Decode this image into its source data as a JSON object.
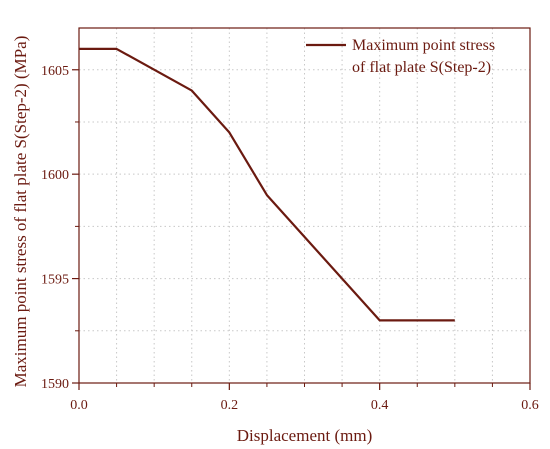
{
  "chart_data": {
    "type": "line",
    "title": "",
    "xlabel": "Displacement (mm)",
    "ylabel": "Maximum point stress of flat plate S(Step-2) (MPa)",
    "xlim": [
      0.0,
      0.6
    ],
    "ylim": [
      1590,
      1607
    ],
    "x_ticks": [
      0.0,
      0.2,
      0.4,
      0.6
    ],
    "x_tick_labels": [
      "0.0",
      "0.2",
      "0.4",
      "0.6"
    ],
    "y_ticks": [
      1590,
      1595,
      1600,
      1605
    ],
    "y_tick_labels": [
      "1590",
      "1595",
      "1600",
      "1605"
    ],
    "x_minor_ticks": [
      0.05,
      0.1,
      0.15,
      0.25,
      0.3,
      0.35,
      0.45,
      0.5,
      0.55
    ],
    "y_minor_ticks": [
      1592.5,
      1597.5,
      1602.5
    ],
    "grid": true,
    "grid_style": "dotted",
    "legend_position": "top-right",
    "series": [
      {
        "name": "Maximum point stress of flat plate S(Step-2)",
        "legend_lines": [
          "Maximum point stress",
          "of flat plate S(Step-2)"
        ],
        "color": "#6b1a10",
        "x": [
          0.0,
          0.05,
          0.15,
          0.2,
          0.25,
          0.4,
          0.5
        ],
        "y": [
          1606,
          1606,
          1604,
          1602,
          1599,
          1593,
          1593
        ]
      }
    ],
    "colors": {
      "axis": "#6b1a10",
      "grid": "#c8c8c8",
      "text": "#6b1a10"
    }
  }
}
